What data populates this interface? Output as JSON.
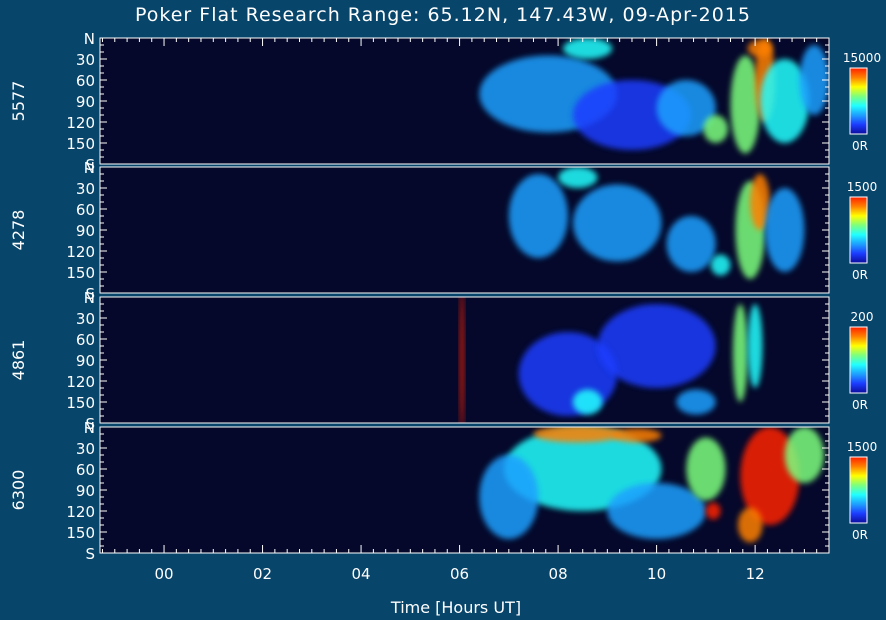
{
  "chart_data": {
    "type": "heatmap",
    "title": "Poker Flat Research Range: 65.12N, 147.43W, 09-Apr-2015",
    "xlabel": "Time [Hours UT]",
    "x_ticks": [
      "00",
      "02",
      "04",
      "06",
      "08",
      "10",
      "12"
    ],
    "x_tick_values": [
      0,
      2,
      4,
      6,
      8,
      10,
      12
    ],
    "xlim": [
      -1.3,
      13.5
    ],
    "ylim": [
      0,
      180
    ],
    "y_ticks": [
      "N",
      "30",
      "60",
      "90",
      "120",
      "150",
      "S"
    ],
    "y_tick_values": [
      0,
      30,
      60,
      90,
      120,
      150,
      180
    ],
    "colormap": [
      "#0c0c9c",
      "#1c3cff",
      "#1ea0ff",
      "#20ffff",
      "#7dff7d",
      "#ffff00",
      "#ff8000",
      "#ff2000"
    ],
    "background_color": "#05082a",
    "panels": [
      {
        "wavelength": "5577",
        "scale_max": "15000",
        "scale_min": "0R",
        "blobs": [
          {
            "t": 7.8,
            "z": 80,
            "ts": 1.4,
            "zs": 55,
            "v": 0.3
          },
          {
            "t": 8.6,
            "z": 15,
            "ts": 0.5,
            "zs": 15,
            "v": 0.45
          },
          {
            "t": 9.5,
            "z": 110,
            "ts": 1.2,
            "zs": 50,
            "v": 0.2
          },
          {
            "t": 10.6,
            "z": 100,
            "ts": 0.6,
            "zs": 40,
            "v": 0.25
          },
          {
            "t": 11.2,
            "z": 130,
            "ts": 0.25,
            "zs": 20,
            "v": 0.55
          },
          {
            "t": 11.8,
            "z": 95,
            "ts": 0.3,
            "zs": 70,
            "v": 0.6
          },
          {
            "t": 12.2,
            "z": 60,
            "ts": 0.2,
            "zs": 60,
            "v": 0.85
          },
          {
            "t": 12.1,
            "z": 15,
            "ts": 0.25,
            "zs": 12,
            "v": 0.9
          },
          {
            "t": 12.6,
            "z": 90,
            "ts": 0.5,
            "zs": 60,
            "v": 0.45
          },
          {
            "t": 13.2,
            "z": 60,
            "ts": 0.3,
            "zs": 50,
            "v": 0.3
          }
        ]
      },
      {
        "wavelength": "4278",
        "scale_max": "1500",
        "scale_min": "0R",
        "blobs": [
          {
            "t": 7.6,
            "z": 70,
            "ts": 0.6,
            "zs": 60,
            "v": 0.25
          },
          {
            "t": 8.4,
            "z": 15,
            "ts": 0.4,
            "zs": 15,
            "v": 0.45
          },
          {
            "t": 9.2,
            "z": 80,
            "ts": 0.9,
            "zs": 55,
            "v": 0.22
          },
          {
            "t": 10.7,
            "z": 110,
            "ts": 0.5,
            "zs": 40,
            "v": 0.28
          },
          {
            "t": 11.3,
            "z": 140,
            "ts": 0.2,
            "zs": 15,
            "v": 0.4
          },
          {
            "t": 11.9,
            "z": 90,
            "ts": 0.3,
            "zs": 70,
            "v": 0.55
          },
          {
            "t": 12.1,
            "z": 50,
            "ts": 0.2,
            "zs": 40,
            "v": 0.8
          },
          {
            "t": 12.6,
            "z": 90,
            "ts": 0.4,
            "zs": 60,
            "v": 0.35
          }
        ]
      },
      {
        "wavelength": "4861",
        "scale_max": "200",
        "scale_min": "0R",
        "blobs": [
          {
            "t": 6.05,
            "z": 90,
            "ts": 0.04,
            "zs": 110,
            "v": 1.0
          },
          {
            "t": 8.2,
            "z": 110,
            "ts": 1.0,
            "zs": 60,
            "v": 0.2
          },
          {
            "t": 8.6,
            "z": 150,
            "ts": 0.3,
            "zs": 18,
            "v": 0.45
          },
          {
            "t": 10.8,
            "z": 150,
            "ts": 0.4,
            "zs": 18,
            "v": 0.35
          },
          {
            "t": 11.7,
            "z": 80,
            "ts": 0.15,
            "zs": 70,
            "v": 0.55
          },
          {
            "t": 12.0,
            "z": 70,
            "ts": 0.15,
            "zs": 60,
            "v": 0.45
          },
          {
            "t": 10.0,
            "z": 70,
            "ts": 1.2,
            "zs": 60,
            "v": 0.16
          }
        ]
      },
      {
        "wavelength": "6300",
        "scale_max": "1500",
        "scale_min": "0R",
        "blobs": [
          {
            "t": 8.5,
            "z": 60,
            "ts": 1.6,
            "zs": 60,
            "v": 0.4
          },
          {
            "t": 8.4,
            "z": 10,
            "ts": 0.9,
            "zs": 12,
            "v": 0.9
          },
          {
            "t": 9.6,
            "z": 12,
            "ts": 0.5,
            "zs": 10,
            "v": 0.8
          },
          {
            "t": 10.0,
            "z": 120,
            "ts": 1.0,
            "zs": 40,
            "v": 0.3
          },
          {
            "t": 11.0,
            "z": 60,
            "ts": 0.4,
            "zs": 45,
            "v": 0.55
          },
          {
            "t": 11.15,
            "z": 120,
            "ts": 0.15,
            "zs": 12,
            "v": 0.95
          },
          {
            "t": 12.3,
            "z": 70,
            "ts": 0.6,
            "zs": 70,
            "v": 1.0
          },
          {
            "t": 11.9,
            "z": 140,
            "ts": 0.25,
            "zs": 25,
            "v": 0.85
          },
          {
            "t": 13.0,
            "z": 40,
            "ts": 0.4,
            "zs": 40,
            "v": 0.55
          },
          {
            "t": 7.0,
            "z": 100,
            "ts": 0.6,
            "zs": 60,
            "v": 0.3
          }
        ]
      }
    ]
  }
}
